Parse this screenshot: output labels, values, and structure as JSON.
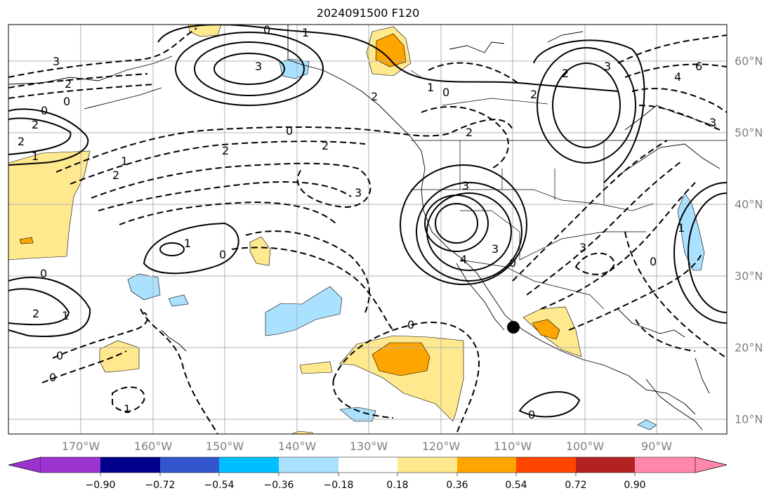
{
  "title": "2024091500 F120",
  "lon_labels": [
    "170°W",
    "160°W",
    "150°W",
    "140°W",
    "130°W",
    "120°W",
    "110°W",
    "100°W",
    "90°W"
  ],
  "lat_labels": [
    "60°N",
    "50°N",
    "40°N",
    "30°N",
    "20°N",
    "10°N"
  ],
  "colorbar": {
    "ticks": [
      "−0.90",
      "−0.72",
      "−0.54",
      "−0.36",
      "−0.18",
      "0.18",
      "0.36",
      "0.54",
      "0.72",
      "0.90"
    ],
    "colors": [
      "#9a33cf",
      "#00008b",
      "#3356cc",
      "#00bfff",
      "#aae1ff",
      "#ffffff",
      "#ffe98f",
      "#ffa500",
      "#ff4500",
      "#b22222",
      "#ff88aa"
    ]
  },
  "contour_labels": [
    "0",
    "1",
    "3",
    "1",
    "0",
    "2",
    "3",
    "2",
    "0",
    "0",
    "2",
    "1",
    "2",
    "0",
    "1",
    "2",
    "2",
    "3",
    "0",
    "1",
    "2",
    "2",
    "4",
    "3",
    "0",
    "1",
    "2",
    "3",
    "0",
    "2",
    "1",
    "2",
    "3",
    "0",
    "0",
    "1",
    "0",
    "3",
    "6",
    "4",
    "3"
  ],
  "marker": "storm-position"
}
